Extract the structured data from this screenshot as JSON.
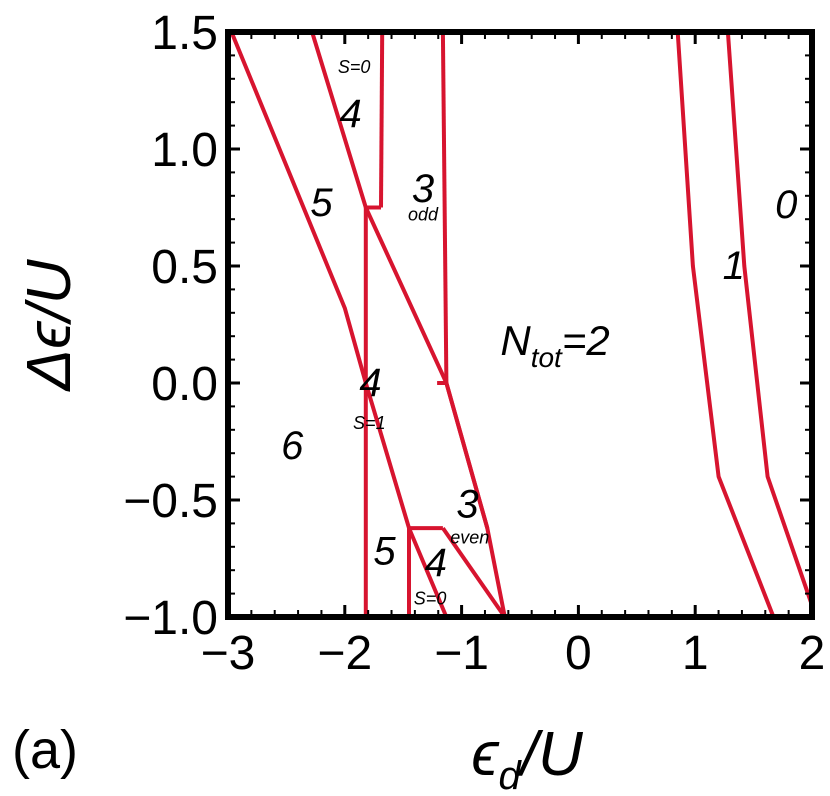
{
  "panel_label": "(a)",
  "chart_data": {
    "type": "line",
    "xlabel": {
      "main": "ϵ",
      "sub": "d",
      "rest": "/U"
    },
    "ylabel": "Δϵ/U",
    "xlim": [
      -3,
      2
    ],
    "ylim": [
      -1,
      1.5
    ],
    "x_ticks": [
      -3,
      -2,
      -1,
      0,
      1,
      2
    ],
    "x_tick_labels": [
      "−3",
      "−2",
      "−1",
      "0",
      "1",
      "2"
    ],
    "y_ticks": [
      -1.0,
      -0.5,
      0.0,
      0.5,
      1.0,
      1.5
    ],
    "y_tick_labels": [
      "−1.0",
      "−0.5",
      "0.0",
      "0.5",
      "1.0",
      "1.5"
    ],
    "line_color": "#d7142f",
    "boundaries": [
      {
        "points": [
          [
            -2.97,
            1.5
          ],
          [
            -2.0,
            0.32
          ],
          [
            -1.82,
            0.0
          ],
          [
            -1.45,
            -0.62
          ],
          [
            -1.13,
            -1.0
          ]
        ]
      },
      {
        "points": [
          [
            -2.28,
            1.5
          ],
          [
            -1.82,
            0.75
          ],
          [
            -1.13,
            0.0
          ],
          [
            -0.78,
            -0.62
          ],
          [
            -0.63,
            -1.0
          ]
        ]
      },
      {
        "points": [
          [
            -1.82,
            -1.0
          ],
          [
            -1.82,
            0.75
          ]
        ]
      },
      {
        "points": [
          [
            -1.82,
            0.75
          ],
          [
            -1.69,
            0.75
          ]
        ]
      },
      {
        "points": [
          [
            -1.69,
            0.75
          ],
          [
            -1.68,
            1.5
          ]
        ]
      },
      {
        "points": [
          [
            -1.16,
            1.5
          ],
          [
            -1.13,
            0.0
          ]
        ]
      },
      {
        "points": [
          [
            -1.21,
            0.0
          ],
          [
            -1.13,
            0.0
          ]
        ]
      },
      {
        "points": [
          [
            -1.13,
            0.0
          ],
          [
            -0.78,
            -0.62
          ]
        ]
      },
      {
        "points": [
          [
            -1.45,
            -0.62
          ],
          [
            -1.16,
            -0.62
          ]
        ]
      },
      {
        "points": [
          [
            -1.45,
            -0.62
          ],
          [
            -1.45,
            -1.0
          ]
        ]
      },
      {
        "points": [
          [
            -1.16,
            -0.62
          ],
          [
            -0.63,
            -1.0
          ]
        ]
      },
      {
        "points": [
          [
            0.85,
            1.5
          ],
          [
            0.98,
            0.5
          ],
          [
            1.2,
            -0.4
          ],
          [
            1.67,
            -1.0
          ]
        ]
      },
      {
        "points": [
          [
            1.28,
            1.5
          ],
          [
            1.42,
            0.5
          ],
          [
            1.62,
            -0.4
          ],
          [
            2.0,
            -0.95
          ]
        ]
      }
    ],
    "region_labels": [
      {
        "text": "S=0",
        "x": -1.92,
        "y": 1.35,
        "size": "small"
      },
      {
        "text": "4",
        "x": -1.95,
        "y": 1.15,
        "size": "big"
      },
      {
        "text": "3",
        "x": -1.33,
        "y": 0.83,
        "size": "big"
      },
      {
        "text": "odd",
        "x": -1.33,
        "y": 0.72,
        "size": "small"
      },
      {
        "text": "5",
        "x": -2.2,
        "y": 0.77,
        "size": "big"
      },
      {
        "text": "0",
        "x": 1.78,
        "y": 0.76,
        "size": "big"
      },
      {
        "text": "1",
        "x": 1.33,
        "y": 0.5,
        "size": "big"
      },
      {
        "text": "4",
        "x": -1.78,
        "y": 0.0,
        "size": "big"
      },
      {
        "text": "S=1",
        "x": -1.79,
        "y": -0.17,
        "size": "small"
      },
      {
        "text": "6",
        "x": -2.45,
        "y": -0.27,
        "size": "big"
      },
      {
        "text": "3",
        "x": -0.95,
        "y": -0.52,
        "size": "big"
      },
      {
        "text": "even",
        "x": -0.93,
        "y": -0.66,
        "size": "small"
      },
      {
        "text": "5",
        "x": -1.66,
        "y": -0.72,
        "size": "big"
      },
      {
        "text": "4",
        "x": -1.22,
        "y": -0.77,
        "size": "big"
      },
      {
        "text": "S=0",
        "x": -1.27,
        "y": -0.92,
        "size": "small"
      }
    ],
    "annotation": {
      "main": "N",
      "sub": "tot",
      "rest": "=2",
      "x": -0.2,
      "y": 0.18
    }
  }
}
